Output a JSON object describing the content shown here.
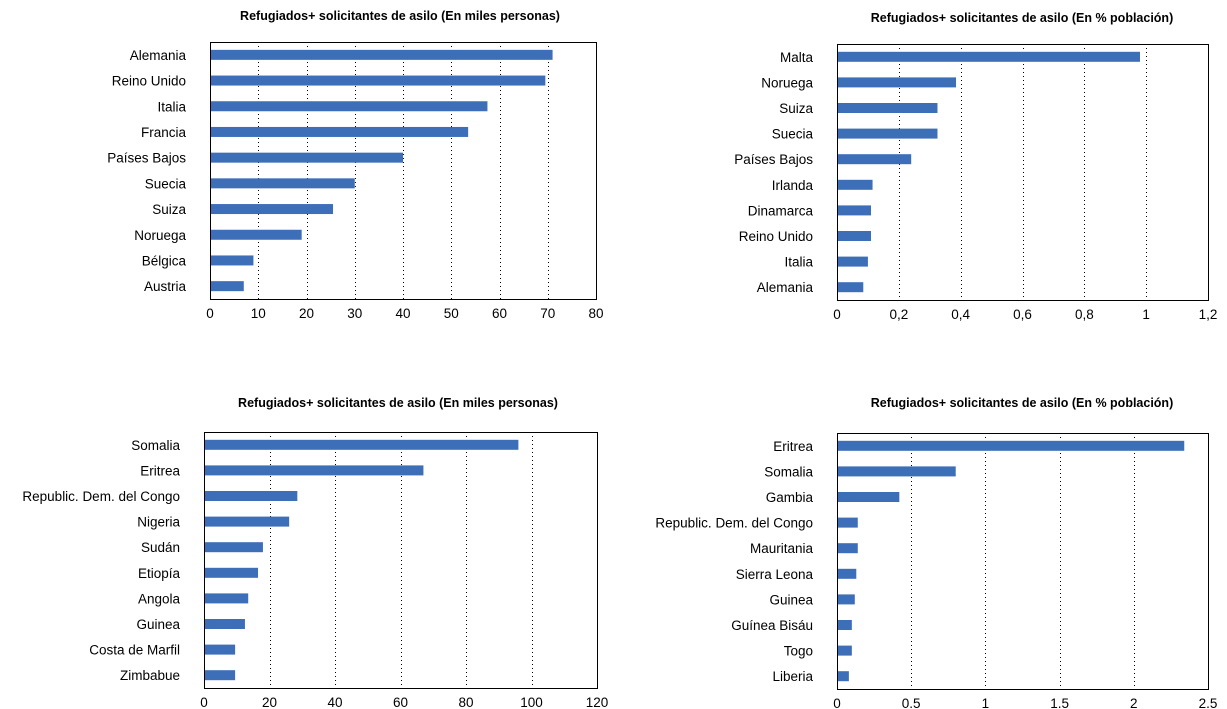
{
  "chart_data": [
    {
      "type": "bar",
      "orientation": "horizontal",
      "title": "Refugiados+ solicitantes de asilo (En miles personas)",
      "categories": [
        "Alemania",
        "Reino Unido",
        "Italia",
        "Francia",
        "Países Bajos",
        "Suecia",
        "Suiza",
        "Noruega",
        "Bélgica",
        "Austria"
      ],
      "values": [
        71,
        69.5,
        57.5,
        53.5,
        40,
        30,
        25.5,
        19,
        9,
        7
      ],
      "xlim": [
        0,
        80
      ],
      "ticks": [
        "0",
        "10",
        "20",
        "30",
        "40",
        "50",
        "60",
        "70",
        "80"
      ],
      "tick_values": [
        0,
        10,
        20,
        30,
        40,
        50,
        60,
        70,
        80
      ],
      "grid": "vertical dotted",
      "color": "#3d6eb8"
    },
    {
      "type": "bar",
      "orientation": "horizontal",
      "title": "Refugiados+ solicitantes de asilo (En % población)",
      "categories": [
        "Malta",
        "Noruega",
        "Suiza",
        "Suecia",
        "Países Bajos",
        "Irlanda",
        "Dinamarca",
        "Reino Unido",
        "Italia",
        "Alemania"
      ],
      "values": [
        0.98,
        0.385,
        0.325,
        0.325,
        0.24,
        0.115,
        0.11,
        0.11,
        0.1,
        0.085
      ],
      "xlim": [
        0,
        1.2
      ],
      "ticks": [
        "0",
        "0,2",
        "0,4",
        "0,6",
        "0,8",
        "1",
        "1,2"
      ],
      "tick_values": [
        0,
        0.2,
        0.4,
        0.6,
        0.8,
        1,
        1.2
      ],
      "grid": "vertical dotted",
      "color": "#3d6eb8"
    },
    {
      "type": "bar",
      "orientation": "horizontal",
      "title": "Refugiados+ solicitantes de asilo (En miles personas)",
      "categories": [
        "Somalia",
        "Eritrea",
        "Republic. Dem. del Congo",
        "Nigeria",
        "Sudán",
        "Etiopía",
        "Angola",
        "Guinea",
        "Costa de Marfil",
        "Zimbabue"
      ],
      "values": [
        96,
        67,
        28.5,
        26,
        18,
        16.5,
        13.5,
        12.5,
        9.5,
        9.5
      ],
      "xlim": [
        0,
        120
      ],
      "ticks": [
        "0",
        "20",
        "40",
        "60",
        "80",
        "100",
        "120"
      ],
      "tick_values": [
        0,
        20,
        40,
        60,
        80,
        100,
        120
      ],
      "grid": "vertical dotted",
      "color": "#3d6eb8"
    },
    {
      "type": "bar",
      "orientation": "horizontal",
      "title": "Refugiados+ solicitantes de asilo (En % población)",
      "categories": [
        "Eritrea",
        "Somalia",
        "Gambia",
        "Republic. Dem. del Congo",
        "Mauritania",
        "Sierra Leona",
        "Guinea",
        "Guínea Bisáu",
        "Togo",
        "Liberia"
      ],
      "values": [
        2.34,
        0.8,
        0.42,
        0.14,
        0.14,
        0.13,
        0.12,
        0.1,
        0.1,
        0.08
      ],
      "xlim": [
        0,
        2.5
      ],
      "ticks": [
        "0",
        "0.5",
        "1",
        "1.5",
        "2",
        "2.5"
      ],
      "tick_values": [
        0,
        0.5,
        1,
        1.5,
        2,
        2.5
      ],
      "grid": "vertical dotted",
      "color": "#3d6eb8"
    }
  ]
}
